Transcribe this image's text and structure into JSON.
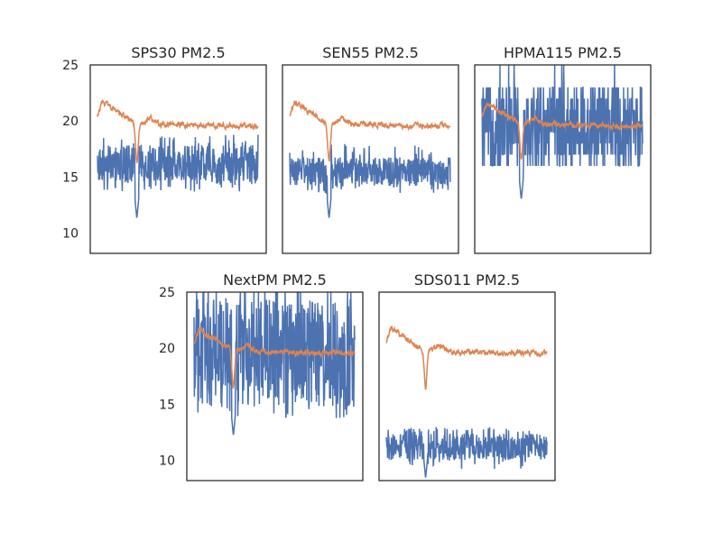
{
  "chart_data": [
    {
      "type": "line",
      "title": "SPS30 PM2.5",
      "ylim": [
        8.2,
        25
      ],
      "yticks": [
        "10",
        "15",
        "20",
        "25"
      ],
      "show_yticks": true,
      "n_points": 500,
      "series": [
        {
          "color": "#4c72b0",
          "summary": {
            "mean": 16.2,
            "band_low": 14.5,
            "band_high": 18.0,
            "min": 11.3,
            "max": 18.8
          }
        },
        {
          "color": "#dd8452",
          "summary": {
            "start": 20.5,
            "peak": 21.8,
            "dip": 16.7,
            "settle": 19.5
          }
        }
      ]
    },
    {
      "type": "line",
      "title": "SEN55 PM2.5",
      "ylim": [
        8.2,
        25
      ],
      "show_yticks": false,
      "n_points": 500,
      "series": [
        {
          "color": "#4c72b0",
          "summary": {
            "mean": 15.5,
            "band_low": 14.3,
            "band_high": 17.0,
            "min": 11.3,
            "max": 18.0
          }
        },
        {
          "color": "#dd8452",
          "summary": {
            "start": 20.5,
            "peak": 21.7,
            "dip": 16.7,
            "settle": 19.5
          }
        }
      ]
    },
    {
      "type": "line",
      "title": "HPMA115 PM2.5",
      "ylim": [
        8.2,
        25
      ],
      "show_yticks": false,
      "n_points": 500,
      "series": [
        {
          "color": "#4c72b0",
          "summary": {
            "levels": [
              16,
              17,
              18,
              19,
              20,
              21,
              22,
              23
            ],
            "min": 13.0,
            "max": 25.0
          }
        },
        {
          "color": "#dd8452",
          "summary": {
            "start": 20.5,
            "peak": 21.6,
            "dip": 16.7,
            "settle": 19.5
          }
        }
      ]
    },
    {
      "type": "line",
      "title": "NextPM PM2.5",
      "ylim": [
        8.2,
        25
      ],
      "yticks": [
        "10",
        "15",
        "20",
        "25"
      ],
      "show_yticks": true,
      "n_points": 500,
      "series": [
        {
          "color": "#4c72b0",
          "summary": {
            "mean": 19.5,
            "band_low": 14.5,
            "band_high": 25.0,
            "min": 12.2,
            "max": 25.0
          }
        },
        {
          "color": "#dd8452",
          "summary": {
            "start": 20.5,
            "peak": 21.7,
            "dip": 16.7,
            "settle": 19.5
          }
        }
      ]
    },
    {
      "type": "line",
      "title": "SDS011 PM2.5",
      "ylim": [
        8.2,
        25
      ],
      "show_yticks": false,
      "n_points": 500,
      "series": [
        {
          "color": "#4c72b0",
          "summary": {
            "mean": 11.2,
            "band_low": 10.0,
            "band_high": 12.5,
            "min": 8.4,
            "max": 13.0
          }
        },
        {
          "color": "#dd8452",
          "summary": {
            "start": 20.5,
            "peak": 21.8,
            "dip": 16.7,
            "settle": 19.5
          }
        }
      ]
    }
  ]
}
